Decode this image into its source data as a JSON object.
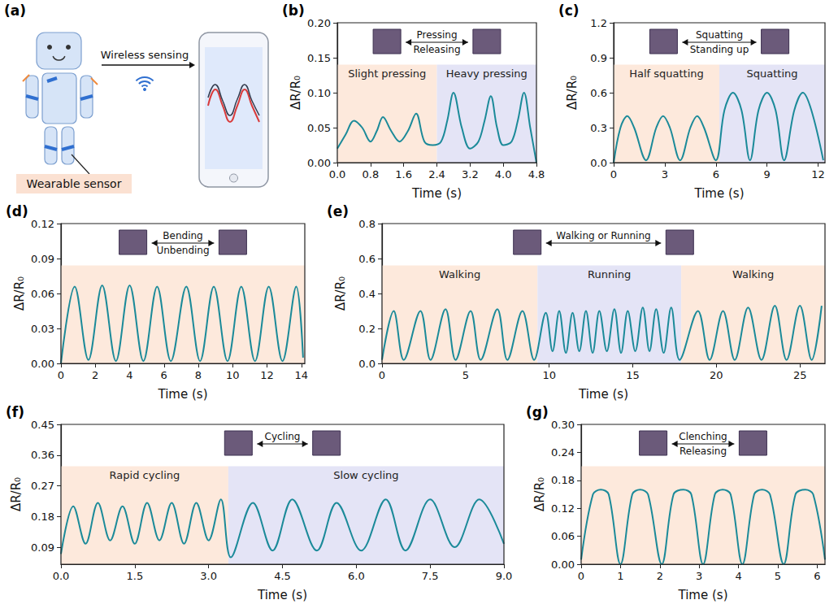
{
  "diagram": {
    "panel": "(a)",
    "texts": {
      "link": "Wireless sensing",
      "sensor": "Wearable sensor"
    }
  },
  "chart_data": [
    {
      "type": "line",
      "panel": "(b)",
      "xlabel": "Time (s)",
      "ylabel": "ΔR/R₀",
      "color": "#1b8a99",
      "grid": false,
      "xlim": [
        0,
        4.8
      ],
      "xticks": [
        {
          "value": 0,
          "label": "0.0"
        },
        {
          "value": 0.8,
          "label": "0.8"
        },
        {
          "value": 1.6,
          "label": "1.6"
        },
        {
          "value": 2.4,
          "label": "2.4"
        },
        {
          "value": 3.2,
          "label": "3.2"
        },
        {
          "value": 4.0,
          "label": "4.0"
        },
        {
          "value": 4.8,
          "label": "4.8"
        }
      ],
      "ylim": [
        0,
        0.2
      ],
      "yticks": [
        {
          "value": 0,
          "label": "0.00"
        },
        {
          "value": 0.05,
          "label": "0.05"
        },
        {
          "value": 0.1,
          "label": "0.10"
        },
        {
          "value": 0.15,
          "label": "0.15"
        },
        {
          "value": 0.2,
          "label": "0.20"
        }
      ],
      "x": [
        0,
        0.2,
        0.4,
        0.6,
        0.8,
        0.95,
        1.1,
        1.3,
        1.5,
        1.7,
        1.9,
        2.1,
        2.3,
        2.5,
        2.65,
        2.8,
        3.0,
        3.2,
        3.4,
        3.55,
        3.7,
        3.85,
        4.0,
        4.2,
        4.35,
        4.5,
        4.65,
        4.8
      ],
      "values": [
        0.02,
        0.04,
        0.06,
        0.05,
        0.03,
        0.045,
        0.065,
        0.045,
        0.03,
        0.045,
        0.07,
        0.03,
        0.025,
        0.03,
        0.06,
        0.1,
        0.05,
        0.02,
        0.03,
        0.06,
        0.095,
        0.05,
        0.025,
        0.03,
        0.06,
        0.1,
        0.05,
        0.0
      ],
      "regions": [
        {
          "x": [
            0,
            2.4
          ],
          "label": "Slight pressing",
          "color": "#fde9dc"
        },
        {
          "x": [
            2.4,
            4.8
          ],
          "label": "Heavy pressing",
          "color": "#e4e4f6"
        }
      ],
      "inset_labels": [
        "Pressing",
        "Releasing"
      ]
    },
    {
      "type": "line",
      "panel": "(c)",
      "xlabel": "Time (s)",
      "ylabel": "ΔR/R₀",
      "color": "#1b8a99",
      "grid": false,
      "xlim": [
        0,
        12.4
      ],
      "xticks": [
        0,
        3,
        6,
        9,
        12
      ],
      "ylim": [
        0,
        1.2
      ],
      "yticks": [
        {
          "value": 0,
          "label": "0.0"
        },
        {
          "value": 0.3,
          "label": "0.3"
        },
        {
          "value": 0.6,
          "label": "0.6"
        },
        {
          "value": 0.9,
          "label": "0.9"
        },
        {
          "value": 1.2,
          "label": "1.2"
        }
      ],
      "x": [
        0,
        0.4,
        0.8,
        1.2,
        1.9,
        2.5,
        2.9,
        3.3,
        3.9,
        4.5,
        4.9,
        5.3,
        6.0,
        6.5,
        7.0,
        7.5,
        8.0,
        8.5,
        9.0,
        9.5,
        10.0,
        10.6,
        11.1,
        11.6,
        12.3
      ],
      "values": [
        0.0,
        0.3,
        0.4,
        0.3,
        0.02,
        0.3,
        0.4,
        0.3,
        0.02,
        0.3,
        0.4,
        0.3,
        0.02,
        0.45,
        0.6,
        0.45,
        0.02,
        0.45,
        0.6,
        0.45,
        0.02,
        0.45,
        0.6,
        0.45,
        0.02
      ],
      "regions": [
        {
          "x": [
            0,
            6.2
          ],
          "label": "Half squatting",
          "color": "#fde9dc"
        },
        {
          "x": [
            6.2,
            12.4
          ],
          "label": "Squatting",
          "color": "#e4e4f6"
        }
      ],
      "inset_labels": [
        "Squatting",
        "Standing up"
      ]
    },
    {
      "type": "line",
      "panel": "(d)",
      "xlabel": "Time (s)",
      "ylabel": "ΔR/R₀",
      "color": "#1b8a99",
      "grid": false,
      "xlim": [
        0,
        14.2
      ],
      "xticks": [
        0,
        2,
        4,
        6,
        8,
        10,
        12,
        14
      ],
      "ylim": [
        0,
        0.12
      ],
      "yticks": [
        {
          "value": 0,
          "label": "0.00"
        },
        {
          "value": 0.03,
          "label": "0.03"
        },
        {
          "value": 0.06,
          "label": "0.06"
        },
        {
          "value": 0.09,
          "label": "0.09"
        },
        {
          "value": 0.12,
          "label": "0.12"
        }
      ],
      "x": [
        0,
        0.8,
        1.6,
        2.4,
        3.2,
        4.0,
        4.8,
        5.6,
        6.4,
        7.3,
        8.1,
        8.9,
        9.7,
        10.5,
        11.3,
        12.1,
        12.9,
        13.7,
        14.1
      ],
      "values": [
        0.0,
        0.066,
        0.003,
        0.067,
        0.002,
        0.067,
        0.002,
        0.066,
        0.002,
        0.066,
        0.002,
        0.066,
        0.002,
        0.066,
        0.002,
        0.066,
        0.002,
        0.066,
        0.005
      ],
      "regions": [
        {
          "x": [
            0,
            14.2
          ],
          "color": "#fde9dc"
        }
      ],
      "inset_labels": [
        "Bending",
        "Unbending"
      ]
    },
    {
      "type": "line",
      "panel": "(e)",
      "xlabel": "Time (s)",
      "ylabel": "ΔR/R₀",
      "color": "#1b8a99",
      "grid": false,
      "xlim": [
        0,
        26.5
      ],
      "xticks": [
        0,
        5,
        10,
        15,
        20,
        25
      ],
      "ylim": [
        0,
        0.8
      ],
      "yticks": [
        {
          "value": 0,
          "label": "0.0"
        },
        {
          "value": 0.2,
          "label": "0.2"
        },
        {
          "value": 0.4,
          "label": "0.4"
        },
        {
          "value": 0.6,
          "label": "0.6"
        },
        {
          "value": 0.8,
          "label": "0.8"
        }
      ],
      "x": [
        0,
        0.7,
        1.3,
        2.3,
        2.9,
        3.8,
        4.4,
        5.3,
        5.9,
        6.9,
        7.5,
        8.4,
        9.1,
        9.8,
        10.2,
        10.6,
        11.0,
        11.4,
        11.8,
        12.2,
        12.6,
        13.0,
        13.45,
        13.9,
        14.3,
        14.7,
        15.15,
        15.6,
        16.0,
        16.4,
        16.85,
        17.3,
        17.8,
        18.9,
        19.6,
        20.4,
        21.1,
        21.9,
        22.7,
        23.5,
        24.2,
        25.0,
        25.7,
        26.3
      ],
      "values": [
        0.02,
        0.3,
        0.02,
        0.3,
        0.02,
        0.31,
        0.02,
        0.3,
        0.02,
        0.31,
        0.02,
        0.3,
        0.02,
        0.29,
        0.07,
        0.3,
        0.06,
        0.29,
        0.07,
        0.3,
        0.06,
        0.3,
        0.07,
        0.31,
        0.06,
        0.3,
        0.07,
        0.32,
        0.07,
        0.31,
        0.06,
        0.32,
        0.02,
        0.3,
        0.02,
        0.3,
        0.02,
        0.32,
        0.02,
        0.33,
        0.02,
        0.33,
        0.02,
        0.33
      ],
      "regions": [
        {
          "x": [
            0,
            9.3
          ],
          "label": "Walking",
          "color": "#fde9dc"
        },
        {
          "x": [
            9.3,
            17.9
          ],
          "label": "Running",
          "color": "#e4e4f6"
        },
        {
          "x": [
            17.9,
            26.5
          ],
          "label": "Walking",
          "color": "#fde9dc"
        }
      ],
      "inset_labels": [
        "Walking or Running"
      ]
    },
    {
      "type": "line",
      "panel": "(f)",
      "xlabel": "Time (s)",
      "ylabel": "ΔR/R₀",
      "color": "#1b8a99",
      "grid": false,
      "xlim": [
        0,
        9.0
      ],
      "xticks": [
        {
          "value": 0,
          "label": "0.0"
        },
        {
          "value": 1.5,
          "label": "1.5"
        },
        {
          "value": 3,
          "label": "3.0"
        },
        {
          "value": 4.5,
          "label": "4.5"
        },
        {
          "value": 6,
          "label": "6.0"
        },
        {
          "value": 7.5,
          "label": "7.5"
        },
        {
          "value": 9,
          "label": "9.0"
        }
      ],
      "ylim": [
        0.04,
        0.45
      ],
      "yticks": [
        0.09,
        0.18,
        0.27,
        0.36,
        0.45
      ],
      "x": [
        0,
        0.25,
        0.5,
        0.75,
        1.0,
        1.25,
        1.5,
        1.75,
        2.0,
        2.25,
        2.5,
        2.75,
        3.0,
        3.25,
        3.45,
        3.9,
        4.3,
        4.7,
        5.2,
        5.6,
        6.1,
        6.6,
        7.0,
        7.5,
        8.0,
        8.5,
        9.0
      ],
      "values": [
        0.07,
        0.21,
        0.1,
        0.22,
        0.11,
        0.21,
        0.1,
        0.22,
        0.11,
        0.22,
        0.1,
        0.22,
        0.11,
        0.23,
        0.06,
        0.22,
        0.08,
        0.23,
        0.08,
        0.22,
        0.08,
        0.23,
        0.08,
        0.23,
        0.09,
        0.23,
        0.1
      ],
      "regions": [
        {
          "x": [
            0,
            3.4
          ],
          "label": "Rapid cycling",
          "color": "#fde9dc"
        },
        {
          "x": [
            3.4,
            9.0
          ],
          "label": "Slow cycling",
          "color": "#e4e4f6"
        }
      ],
      "inset_labels": [
        "Cycling"
      ]
    },
    {
      "type": "line",
      "panel": "(g)",
      "xlabel": "Time (s)",
      "ylabel": "ΔR/R₀",
      "color": "#1b8a99",
      "grid": false,
      "xlim": [
        0,
        6.2
      ],
      "xticks": [
        0,
        1,
        2,
        3,
        4,
        5,
        6
      ],
      "ylim": [
        0,
        0.3
      ],
      "yticks": [
        {
          "value": 0,
          "label": "0.00"
        },
        {
          "value": 0.06,
          "label": "0.06"
        },
        {
          "value": 0.12,
          "label": "0.12"
        },
        {
          "value": 0.18,
          "label": "0.18"
        },
        {
          "value": 0.24,
          "label": "0.24"
        },
        {
          "value": 0.3,
          "label": "0.30"
        }
      ],
      "x": [
        0,
        0.3,
        0.5,
        0.7,
        1.0,
        1.3,
        1.5,
        1.7,
        2.05,
        2.35,
        2.6,
        2.8,
        3.1,
        3.4,
        3.6,
        3.8,
        4.1,
        4.4,
        4.6,
        4.8,
        5.15,
        5.45,
        5.7,
        5.9,
        6.2
      ],
      "values": [
        0.01,
        0.15,
        0.16,
        0.15,
        0.0,
        0.15,
        0.16,
        0.15,
        0.0,
        0.15,
        0.16,
        0.15,
        0.0,
        0.15,
        0.16,
        0.15,
        0.0,
        0.15,
        0.16,
        0.15,
        0.0,
        0.15,
        0.16,
        0.15,
        0.01
      ],
      "regions": [
        {
          "x": [
            0,
            6.2
          ],
          "color": "#fde9dc"
        }
      ],
      "inset_labels": [
        "Clenching",
        "Releasing"
      ]
    }
  ]
}
